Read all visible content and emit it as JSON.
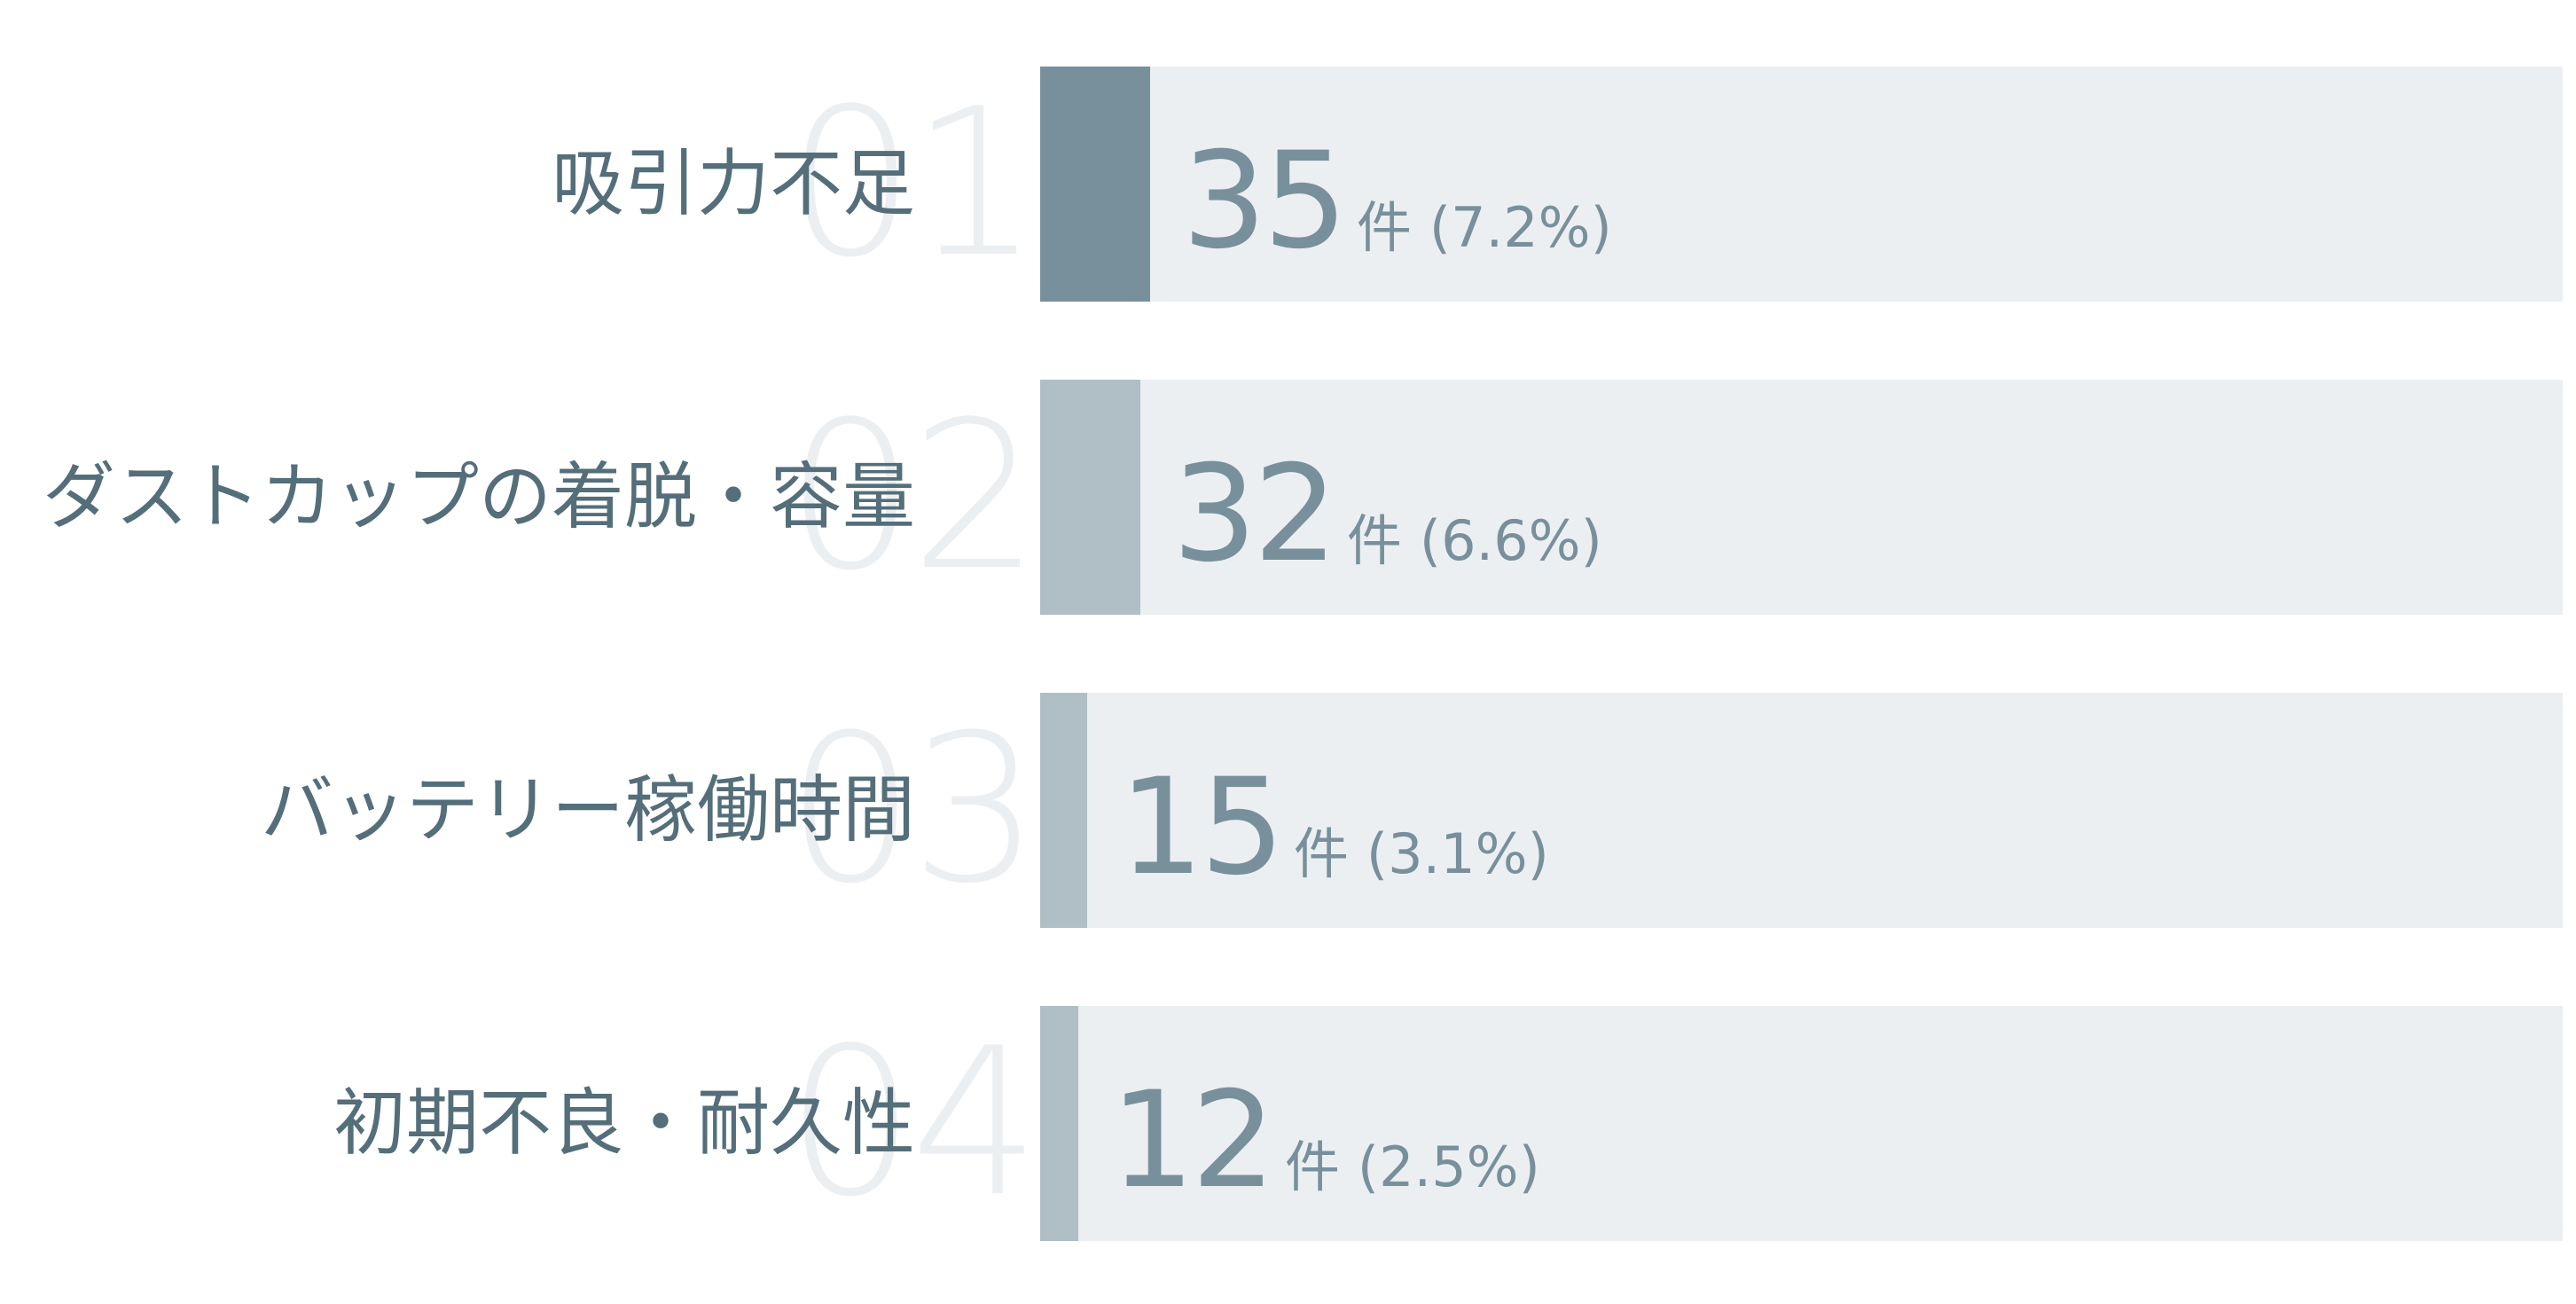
{
  "chart_data": {
    "type": "bar",
    "orientation": "horizontal",
    "xlim": [
      0,
      100
    ],
    "colors": {
      "track": "#eceff2",
      "fill_top": "#78909c",
      "fill_other": "#b0bec5",
      "label": "#546e7a",
      "value": "#78909c",
      "rank": "#eceff2"
    },
    "items": [
      {
        "rank": "01",
        "category": "吸引力不足",
        "count": "35",
        "unit": "件",
        "percent_label": "(7.2%)",
        "percent": 7.2
      },
      {
        "rank": "02",
        "category": "ダストカップの着脱・容量",
        "count": "32",
        "unit": "件",
        "percent_label": "(6.6%)",
        "percent": 6.6
      },
      {
        "rank": "03",
        "category": "バッテリー稼働時間",
        "count": "15",
        "unit": "件",
        "percent_label": "(3.1%)",
        "percent": 3.1
      },
      {
        "rank": "04",
        "category": "初期不良・耐久性",
        "count": "12",
        "unit": "件",
        "percent_label": "(2.5%)",
        "percent": 2.5
      }
    ]
  }
}
